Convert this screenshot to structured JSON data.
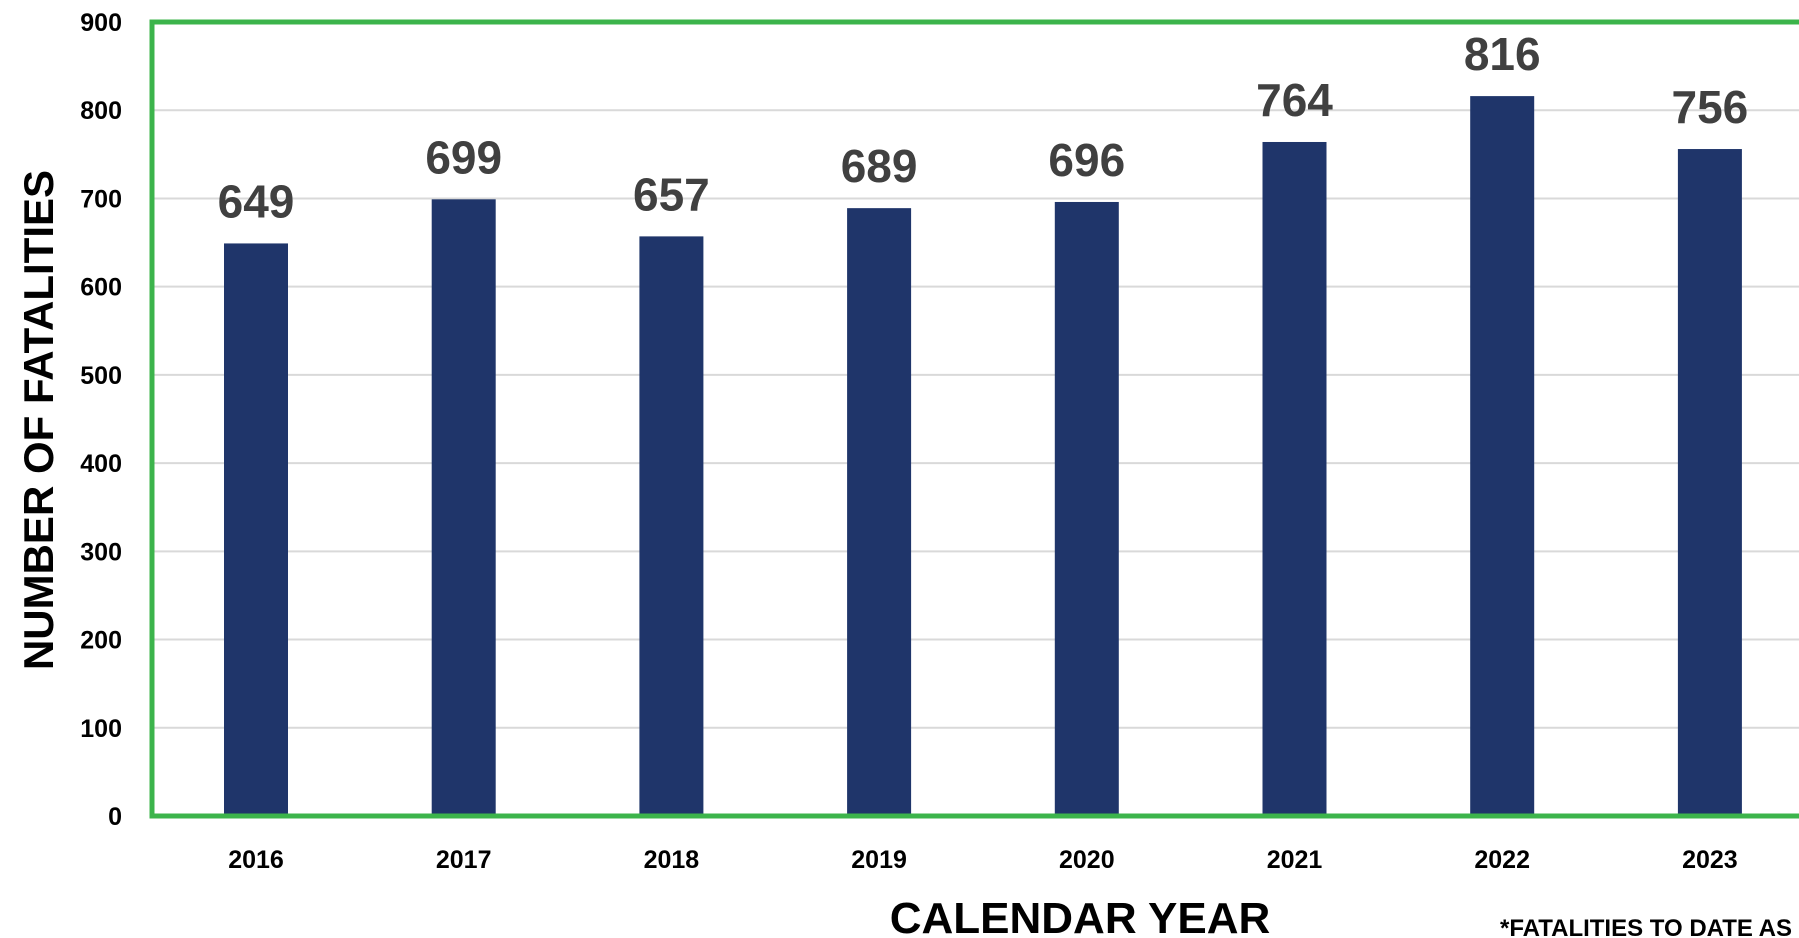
{
  "colors": {
    "bar": "#1f356a",
    "frame": "#3cb44b",
    "grid": "#d9d9d9",
    "data_label": "#404040",
    "text": "#000000"
  },
  "chart_data": {
    "type": "bar",
    "categories": [
      "2016",
      "2017",
      "2018",
      "2019",
      "2020",
      "2021",
      "2022",
      "2023"
    ],
    "values": [
      649,
      699,
      657,
      689,
      696,
      764,
      816,
      756
    ],
    "title": "",
    "xlabel": "CALENDAR YEAR",
    "ylabel": "NUMBER OF FATALITIES",
    "ylim": [
      0,
      900
    ],
    "yticks": [
      0,
      100,
      200,
      300,
      400,
      500,
      600,
      700,
      800,
      900
    ],
    "grid": true,
    "data_labels": true,
    "footnote": "*FATALITIES TO DATE AS OF OCT"
  }
}
